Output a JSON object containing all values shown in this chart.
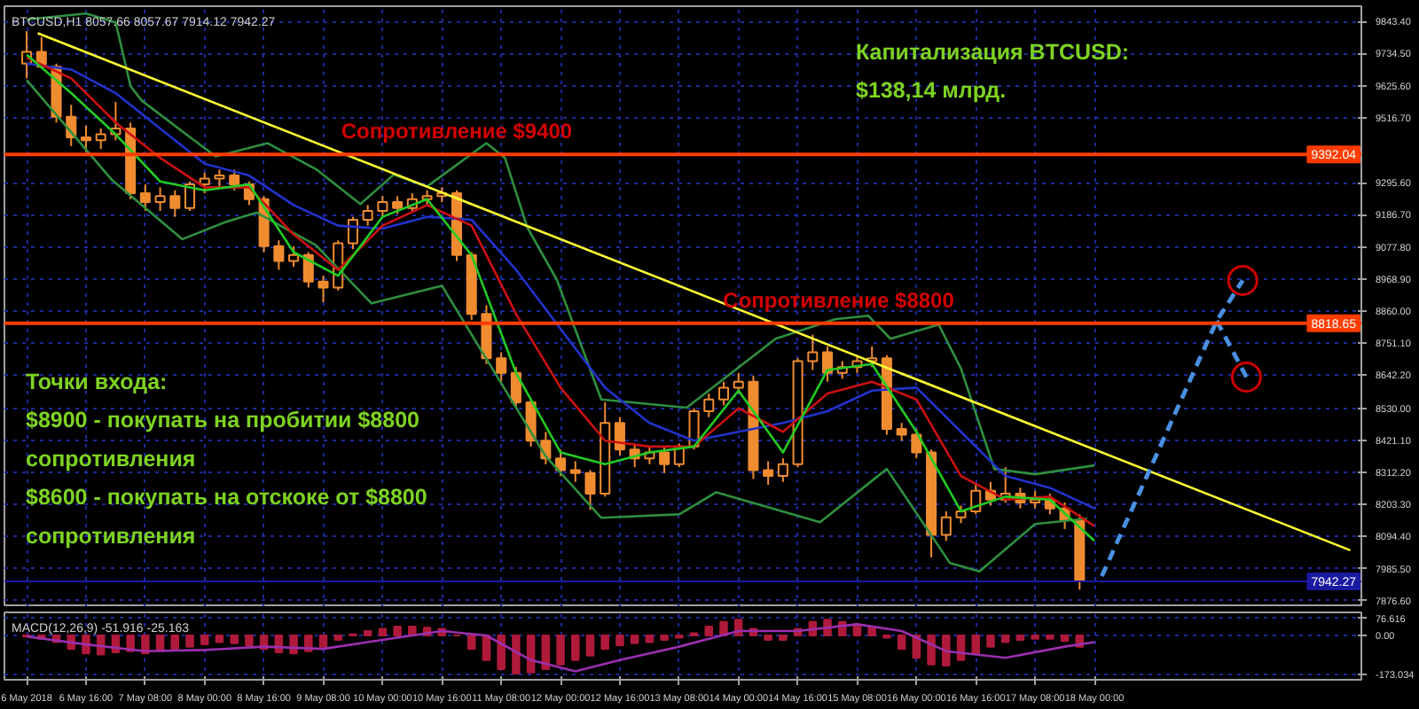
{
  "chart_data": [
    {
      "type": "candlestick",
      "title": "BTCUSD,H1  8057.66 8057.67 7914.12 7942.27",
      "xlim": [
        "2018-05-05T18:00",
        "2018-05-21T00:00"
      ],
      "xticks": [
        {
          "value": "2018-05-06T00:00",
          "label": null
        },
        {
          "value": "2018-05-06T16:00",
          "label": null
        },
        {
          "value": "2018-05-07T08:00",
          "label": null
        },
        {
          "value": "2018-05-08T00:00",
          "label": null
        },
        {
          "value": "2018-05-08T16:00",
          "label": null
        },
        {
          "value": "2018-05-09T08:00",
          "label": null
        },
        {
          "value": "2018-05-10T00:00",
          "label": null
        },
        {
          "value": "2018-05-10T16:00",
          "label": null
        },
        {
          "value": "2018-05-11T08:00",
          "label": null
        },
        {
          "value": "2018-05-12T00:00",
          "label": null
        },
        {
          "value": "2018-05-12T16:00",
          "label": null
        },
        {
          "value": "2018-05-13T08:00",
          "label": null
        },
        {
          "value": "2018-05-14T00:00",
          "label": null
        },
        {
          "value": "2018-05-14T16:00",
          "label": null
        },
        {
          "value": "2018-05-15T08:00",
          "label": null
        },
        {
          "value": "2018-05-16T00:00",
          "label": null
        },
        {
          "value": "2018-05-16T16:00",
          "label": null
        },
        {
          "value": "2018-05-17T08:00",
          "label": null
        },
        {
          "value": "2018-05-18T00:00",
          "label": null
        }
      ],
      "ylim": [
        7855,
        9895
      ],
      "yticks": [
        {
          "value": 9843.4,
          "label": "9843.40"
        },
        {
          "value": 9734.5,
          "label": "9734.50"
        },
        {
          "value": 9625.6,
          "label": "9625.60"
        },
        {
          "value": 9516.7,
          "label": "9516.70"
        },
        {
          "value": 9295.6,
          "label": "9295.60"
        },
        {
          "value": 9186.7,
          "label": "9186.70"
        },
        {
          "value": 9077.8,
          "label": "9077.80"
        },
        {
          "value": 8968.9,
          "label": "8968.90"
        },
        {
          "value": 8860.0,
          "label": "8860.00"
        },
        {
          "value": 8751.1,
          "label": "8751.10"
        },
        {
          "value": 8642.2,
          "label": "8642.20"
        },
        {
          "value": 8530.0,
          "label": "8530.00"
        },
        {
          "value": 8421.1,
          "label": "8421.10"
        },
        {
          "value": 8312.2,
          "label": "8312.20"
        },
        {
          "value": 8203.3,
          "label": "8203.30"
        },
        {
          "value": 8094.4,
          "label": "8094.40"
        },
        {
          "value": 7985.5,
          "label": "7985.50"
        },
        {
          "value": 7876.6,
          "label": "7876.60"
        }
      ],
      "tick_labels": "y",
      "grid": true,
      "color": "#f08c30",
      "x": [
        "2018-05-06T00:00",
        "2018-05-06T04:00",
        "2018-05-06T08:00",
        "2018-05-06T12:00",
        "2018-05-06T16:00",
        "2018-05-06T20:00",
        "2018-05-07T00:00",
        "2018-05-07T04:00",
        "2018-05-07T08:00",
        "2018-05-07T12:00",
        "2018-05-07T16:00",
        "2018-05-07T20:00",
        "2018-05-08T00:00",
        "2018-05-08T04:00",
        "2018-05-08T08:00",
        "2018-05-08T12:00",
        "2018-05-08T16:00",
        "2018-05-08T20:00",
        "2018-05-09T00:00",
        "2018-05-09T04:00",
        "2018-05-09T08:00",
        "2018-05-09T12:00",
        "2018-05-09T16:00",
        "2018-05-09T20:00",
        "2018-05-10T00:00",
        "2018-05-10T04:00",
        "2018-05-10T08:00",
        "2018-05-10T12:00",
        "2018-05-10T16:00",
        "2018-05-10T20:00",
        "2018-05-11T00:00",
        "2018-05-11T04:00",
        "2018-05-11T08:00",
        "2018-05-11T12:00",
        "2018-05-11T16:00",
        "2018-05-11T20:00",
        "2018-05-12T00:00",
        "2018-05-12T04:00",
        "2018-05-12T08:00",
        "2018-05-12T12:00",
        "2018-05-12T16:00",
        "2018-05-12T20:00",
        "2018-05-13T00:00",
        "2018-05-13T04:00",
        "2018-05-13T08:00",
        "2018-05-13T12:00",
        "2018-05-13T16:00",
        "2018-05-13T20:00",
        "2018-05-14T00:00",
        "2018-05-14T04:00",
        "2018-05-14T08:00",
        "2018-05-14T12:00",
        "2018-05-14T16:00",
        "2018-05-14T20:00",
        "2018-05-15T00:00",
        "2018-05-15T04:00",
        "2018-05-15T08:00",
        "2018-05-15T12:00",
        "2018-05-15T16:00",
        "2018-05-15T20:00",
        "2018-05-16T00:00",
        "2018-05-16T04:00",
        "2018-05-16T08:00",
        "2018-05-16T12:00",
        "2018-05-16T16:00",
        "2018-05-16T20:00",
        "2018-05-17T00:00",
        "2018-05-17T04:00",
        "2018-05-17T08:00",
        "2018-05-17T12:00",
        "2018-05-17T16:00",
        "2018-05-17T20:00"
      ],
      "ohlc": [
        [
          9700,
          9810,
          9650,
          9740
        ],
        [
          9740,
          9790,
          9690,
          9690
        ],
        [
          9690,
          9700,
          9500,
          9520
        ],
        [
          9520,
          9560,
          9420,
          9450
        ],
        [
          9450,
          9490,
          9400,
          9440
        ],
        [
          9440,
          9480,
          9410,
          9460
        ],
        [
          9460,
          9570,
          9440,
          9480
        ],
        [
          9480,
          9500,
          9240,
          9260
        ],
        [
          9260,
          9290,
          9200,
          9230
        ],
        [
          9230,
          9280,
          9200,
          9250
        ],
        [
          9250,
          9270,
          9180,
          9210
        ],
        [
          9210,
          9300,
          9200,
          9290
        ],
        [
          9290,
          9330,
          9260,
          9310
        ],
        [
          9310,
          9340,
          9280,
          9320
        ],
        [
          9320,
          9340,
          9270,
          9290
        ],
        [
          9290,
          9300,
          9220,
          9240
        ],
        [
          9240,
          9250,
          9060,
          9080
        ],
        [
          9080,
          9100,
          9000,
          9030
        ],
        [
          9030,
          9080,
          9010,
          9050
        ],
        [
          9050,
          9060,
          8940,
          8960
        ],
        [
          8960,
          8980,
          8890,
          8940
        ],
        [
          8940,
          9100,
          8930,
          9090
        ],
        [
          9090,
          9180,
          9070,
          9170
        ],
        [
          9170,
          9220,
          9150,
          9200
        ],
        [
          9200,
          9250,
          9180,
          9230
        ],
        [
          9230,
          9250,
          9190,
          9210
        ],
        [
          9210,
          9260,
          9200,
          9240
        ],
        [
          9240,
          9270,
          9220,
          9250
        ],
        [
          9250,
          9280,
          9230,
          9260
        ],
        [
          9260,
          9270,
          9030,
          9050
        ],
        [
          9050,
          9060,
          8830,
          8850
        ],
        [
          8850,
          8880,
          8680,
          8700
        ],
        [
          8700,
          8720,
          8620,
          8650
        ],
        [
          8650,
          8670,
          8530,
          8550
        ],
        [
          8550,
          8560,
          8400,
          8420
        ],
        [
          8420,
          8450,
          8340,
          8360
        ],
        [
          8360,
          8390,
          8300,
          8320
        ],
        [
          8320,
          8350,
          8280,
          8310
        ],
        [
          8310,
          8320,
          8185,
          8240
        ],
        [
          8240,
          8550,
          8230,
          8480
        ],
        [
          8480,
          8500,
          8370,
          8390
        ],
        [
          8390,
          8410,
          8330,
          8360
        ],
        [
          8360,
          8400,
          8340,
          8380
        ],
        [
          8380,
          8400,
          8310,
          8340
        ],
        [
          8340,
          8410,
          8330,
          8400
        ],
        [
          8400,
          8530,
          8390,
          8520
        ],
        [
          8520,
          8580,
          8500,
          8560
        ],
        [
          8560,
          8620,
          8540,
          8600
        ],
        [
          8600,
          8650,
          8580,
          8620
        ],
        [
          8620,
          8640,
          8290,
          8320
        ],
        [
          8320,
          8350,
          8270,
          8300
        ],
        [
          8300,
          8360,
          8280,
          8340
        ],
        [
          8340,
          8700,
          8330,
          8690
        ],
        [
          8690,
          8780,
          8660,
          8720
        ],
        [
          8720,
          8740,
          8620,
          8650
        ],
        [
          8650,
          8690,
          8630,
          8670
        ],
        [
          8670,
          8710,
          8650,
          8690
        ],
        [
          8690,
          8740,
          8670,
          8700
        ],
        [
          8700,
          8710,
          8440,
          8460
        ],
        [
          8460,
          8480,
          8420,
          8440
        ],
        [
          8440,
          8460,
          8360,
          8380
        ],
        [
          8380,
          8390,
          8024,
          8100
        ],
        [
          8100,
          8180,
          8080,
          8160
        ],
        [
          8160,
          8200,
          8140,
          8180
        ],
        [
          8180,
          8270,
          8170,
          8250
        ],
        [
          8250,
          8280,
          8200,
          8220
        ],
        [
          8220,
          8330,
          8210,
          8240
        ],
        [
          8240,
          8260,
          8190,
          8210
        ],
        [
          8210,
          8250,
          8190,
          8220
        ],
        [
          8220,
          8240,
          8170,
          8190
        ],
        [
          8190,
          8210,
          8120,
          8150
        ],
        [
          8150,
          8170,
          7914.12,
          7942.27
        ]
      ],
      "series": [
        {
          "type": "line",
          "color": "#2f8f3f",
          "x": [
            "2018-05-06T00:00",
            "2018-05-06T16:00",
            "2018-05-07T00:00",
            "2018-05-07T04:00",
            "2018-05-07T07:00",
            "2018-05-07T19:00",
            "2018-05-08T03:00",
            "2018-05-08T17:00",
            "2018-05-09T06:00",
            "2018-05-09T18:00",
            "2018-05-10T03:00",
            "2018-05-10T12:00",
            "2018-05-11T04:00",
            "2018-05-11T09:00",
            "2018-05-11T15:00",
            "2018-05-11T23:00",
            "2018-05-12T11:00",
            "2018-05-13T10:00",
            "2018-05-14T10:00",
            "2018-05-15T02:00",
            "2018-05-15T11:00",
            "2018-05-15T17:00",
            "2018-05-16T06:00",
            "2018-05-16T12:00",
            "2018-05-16T21:00",
            "2018-05-17T08:00",
            "2018-05-18T00:00"
          ],
          "values": [
            9850,
            9870,
            9840,
            9624,
            9575,
            9460,
            9385,
            9430,
            9342,
            9223,
            9323,
            9283,
            9430,
            9380,
            9145,
            8966,
            8560,
            8532,
            8766,
            8832,
            8844,
            8766,
            8814,
            8665,
            8324,
            8306,
            8336
          ]
        },
        {
          "type": "line",
          "color": "#2f8f3f",
          "x": [
            "2018-05-06T00:00",
            "2018-05-06T23:00",
            "2018-05-07T18:00",
            "2018-05-08T06:00",
            "2018-05-08T14:00",
            "2018-05-09T06:00",
            "2018-05-09T21:00",
            "2018-05-10T16:00",
            "2018-05-11T20:00",
            "2018-05-12T11:00",
            "2018-05-13T08:00",
            "2018-05-13T18:00",
            "2018-05-14T22:00",
            "2018-05-15T16:00",
            "2018-05-16T09:00",
            "2018-05-16T17:00",
            "2018-05-17T08:00",
            "2018-05-17T22:00"
          ],
          "values": [
            9644,
            9305,
            9104,
            9164,
            9194,
            9084,
            8886,
            8946,
            8367,
            8158,
            8170,
            8245,
            8143,
            8324,
            8005,
            7976,
            8137,
            8155
          ]
        },
        {
          "type": "line",
          "color": "#2233cc",
          "x": [
            "2018-05-06T00:00",
            "2018-05-06T12:00",
            "2018-05-07T00:00",
            "2018-05-07T12:00",
            "2018-05-08T00:00",
            "2018-05-08T12:00",
            "2018-05-09T00:00",
            "2018-05-09T12:00",
            "2018-05-10T00:00",
            "2018-05-10T12:00",
            "2018-05-11T00:00",
            "2018-05-11T12:00",
            "2018-05-12T00:00",
            "2018-05-12T12:00",
            "2018-05-13T00:00",
            "2018-05-13T12:00",
            "2018-05-14T00:00",
            "2018-05-14T12:00",
            "2018-05-15T00:00",
            "2018-05-15T12:00",
            "2018-05-16T00:00",
            "2018-05-16T12:00",
            "2018-05-17T00:00",
            "2018-05-17T12:00",
            "2018-05-18T00:00"
          ],
          "values": [
            9700,
            9680,
            9600,
            9480,
            9360,
            9320,
            9220,
            9150,
            9140,
            9180,
            9170,
            9000,
            8800,
            8600,
            8480,
            8420,
            8450,
            8480,
            8520,
            8590,
            8600,
            8450,
            8300,
            8260,
            8190
          ]
        },
        {
          "type": "line",
          "color": "#cc1111",
          "x": [
            "2018-05-06T00:00",
            "2018-05-06T12:00",
            "2018-05-07T00:00",
            "2018-05-07T12:00",
            "2018-05-08T00:00",
            "2018-05-08T12:00",
            "2018-05-09T00:00",
            "2018-05-09T12:00",
            "2018-05-10T00:00",
            "2018-05-10T12:00",
            "2018-05-11T00:00",
            "2018-05-11T12:00",
            "2018-05-12T00:00",
            "2018-05-12T12:00",
            "2018-05-13T00:00",
            "2018-05-13T12:00",
            "2018-05-14T00:00",
            "2018-05-14T12:00",
            "2018-05-15T00:00",
            "2018-05-15T12:00",
            "2018-05-16T00:00",
            "2018-05-16T12:00",
            "2018-05-17T00:00",
            "2018-05-17T12:00",
            "2018-05-18T00:00"
          ],
          "values": [
            9720,
            9650,
            9500,
            9380,
            9280,
            9280,
            9120,
            9000,
            9150,
            9220,
            9150,
            8850,
            8600,
            8420,
            8400,
            8400,
            8530,
            8450,
            8580,
            8620,
            8560,
            8300,
            8220,
            8230,
            8130
          ]
        },
        {
          "type": "line",
          "color": "#22cc22",
          "x": [
            "2018-05-06T00:00",
            "2018-05-06T12:00",
            "2018-05-07T00:00",
            "2018-05-07T12:00",
            "2018-05-08T00:00",
            "2018-05-08T12:00",
            "2018-05-09T00:00",
            "2018-05-09T12:00",
            "2018-05-10T00:00",
            "2018-05-10T12:00",
            "2018-05-11T00:00",
            "2018-05-11T12:00",
            "2018-05-12T00:00",
            "2018-05-12T12:00",
            "2018-05-13T00:00",
            "2018-05-13T12:00",
            "2018-05-14T00:00",
            "2018-05-14T12:00",
            "2018-05-15T00:00",
            "2018-05-15T12:00",
            "2018-05-16T00:00",
            "2018-05-16T12:00",
            "2018-05-17T00:00",
            "2018-05-17T12:00",
            "2018-05-18T00:00"
          ],
          "values": [
            9730,
            9600,
            9460,
            9300,
            9270,
            9290,
            9060,
            8980,
            9180,
            9240,
            9050,
            8650,
            8380,
            8340,
            8380,
            8400,
            8590,
            8380,
            8660,
            8680,
            8450,
            8180,
            8230,
            8220,
            8080
          ]
        },
        {
          "type": "line",
          "color": "#ffff33",
          "x": [
            "2018-05-06T03:00",
            "2018-05-20T21:00"
          ],
          "values": [
            9803,
            8048
          ]
        },
        {
          "type": "line",
          "color": "#4a90e2",
          "line_style": "dashed",
          "x": [
            "2018-05-18T02:00",
            "2018-05-19T09:00",
            "2018-05-19T16:00"
          ],
          "values": [
            7960,
            8827,
            8964
          ]
        },
        {
          "type": "line",
          "color": "#4a90e2",
          "line_style": "dashed",
          "x": [
            "2018-05-19T09:00",
            "2018-05-19T17:00"
          ],
          "values": [
            8827,
            8636
          ]
        },
        {
          "type": "scatter",
          "marker": "circle",
          "color": "#cc0000",
          "x": [
            "2018-05-19T16:00",
            "2018-05-19T17:00"
          ],
          "values": [
            8964,
            8636
          ]
        }
      ],
      "ref_lines": [
        {
          "axis": "y",
          "value": 9392.04,
          "label": "9392.04",
          "color": "#ff3c00"
        },
        {
          "axis": "y",
          "value": 8818.65,
          "label": "8818.65",
          "color": "#ff3c00"
        },
        {
          "axis": "y",
          "value": 7942.27,
          "label": "7942.27",
          "color": "#1a1aa0"
        }
      ],
      "annotations": [
        {
          "text": "Сопротивление $9400",
          "x": "2018-05-10T20:00",
          "y": 9392.04
        },
        {
          "text": "Сопротивление $8800",
          "x": "2018-05-15T03:00",
          "y": 8818.65
        },
        "Капитализация BTCUSD:\n$138,14 млрд.",
        "Точки входа:\n$8900 - покупать на пробитии $8800\nсопротивления\n$8600 - покупать на отскоке от $8800\nсопротивления"
      ]
    },
    {
      "type": "bar",
      "title": "MACD(12,26,9) -51.916 -25.163",
      "xlim": [
        "2018-05-05T18:00",
        "2018-05-21T00:00"
      ],
      "xticks": [
        {
          "value": "2018-05-06T00:00",
          "label": "6 May 2018"
        },
        {
          "value": "2018-05-06T16:00",
          "label": "6 May 16:00"
        },
        {
          "value": "2018-05-07T08:00",
          "label": "7 May 08:00"
        },
        {
          "value": "2018-05-08T00:00",
          "label": "8 May 00:00"
        },
        {
          "value": "2018-05-08T16:00",
          "label": "8 May 16:00"
        },
        {
          "value": "2018-05-09T08:00",
          "label": "9 May 08:00"
        },
        {
          "value": "2018-05-10T00:00",
          "label": "10 May 00:00"
        },
        {
          "value": "2018-05-10T16:00",
          "label": "10 May 16:00"
        },
        {
          "value": "2018-05-11T08:00",
          "label": "11 May 08:00"
        },
        {
          "value": "2018-05-12T00:00",
          "label": "12 May 00:00"
        },
        {
          "value": "2018-05-12T16:00",
          "label": "12 May 16:00"
        },
        {
          "value": "2018-05-13T08:00",
          "label": "13 May 08:00"
        },
        {
          "value": "2018-05-14T00:00",
          "label": "14 May 00:00"
        },
        {
          "value": "2018-05-14T16:00",
          "label": "14 May 16:00"
        },
        {
          "value": "2018-05-15T08:00",
          "label": "15 May 08:00"
        },
        {
          "value": "2018-05-16T00:00",
          "label": "16 May 00:00"
        },
        {
          "value": "2018-05-16T16:00",
          "label": "16 May 16:00"
        },
        {
          "value": "2018-05-17T08:00",
          "label": "17 May 08:00"
        },
        {
          "value": "2018-05-18T00:00",
          "label": "18 May 00:00"
        }
      ],
      "ylim": [
        -198,
        103
      ],
      "yticks": [
        {
          "value": 76.616,
          "label": "76.616"
        },
        {
          "value": 0,
          "label": "0.00"
        },
        {
          "value": -173.034,
          "label": "-173.034"
        }
      ],
      "grid": true,
      "x": [
        "2018-05-06T00:00",
        "2018-05-06T04:00",
        "2018-05-06T08:00",
        "2018-05-06T12:00",
        "2018-05-06T16:00",
        "2018-05-06T20:00",
        "2018-05-07T00:00",
        "2018-05-07T04:00",
        "2018-05-07T08:00",
        "2018-05-07T12:00",
        "2018-05-07T16:00",
        "2018-05-07T20:00",
        "2018-05-08T00:00",
        "2018-05-08T04:00",
        "2018-05-08T08:00",
        "2018-05-08T12:00",
        "2018-05-08T16:00",
        "2018-05-08T20:00",
        "2018-05-09T00:00",
        "2018-05-09T04:00",
        "2018-05-09T08:00",
        "2018-05-09T12:00",
        "2018-05-09T16:00",
        "2018-05-09T20:00",
        "2018-05-10T00:00",
        "2018-05-10T04:00",
        "2018-05-10T08:00",
        "2018-05-10T12:00",
        "2018-05-10T16:00",
        "2018-05-10T20:00",
        "2018-05-11T00:00",
        "2018-05-11T04:00",
        "2018-05-11T08:00",
        "2018-05-11T12:00",
        "2018-05-11T16:00",
        "2018-05-11T20:00",
        "2018-05-12T00:00",
        "2018-05-12T04:00",
        "2018-05-12T08:00",
        "2018-05-12T12:00",
        "2018-05-12T16:00",
        "2018-05-12T20:00",
        "2018-05-13T00:00",
        "2018-05-13T04:00",
        "2018-05-13T08:00",
        "2018-05-13T12:00",
        "2018-05-13T16:00",
        "2018-05-13T20:00",
        "2018-05-14T00:00",
        "2018-05-14T04:00",
        "2018-05-14T08:00",
        "2018-05-14T12:00",
        "2018-05-14T16:00",
        "2018-05-14T20:00",
        "2018-05-15T00:00",
        "2018-05-15T04:00",
        "2018-05-15T08:00",
        "2018-05-15T12:00",
        "2018-05-15T16:00",
        "2018-05-15T20:00",
        "2018-05-16T00:00",
        "2018-05-16T04:00",
        "2018-05-16T08:00",
        "2018-05-16T12:00",
        "2018-05-16T16:00",
        "2018-05-16T20:00",
        "2018-05-17T00:00",
        "2018-05-17T04:00",
        "2018-05-17T08:00",
        "2018-05-17T12:00",
        "2018-05-17T16:00",
        "2018-05-17T20:00"
      ],
      "series": [
        {
          "type": "bar",
          "color": "#b01a3a",
          "values": [
            -5,
            -15,
            -30,
            -60,
            -80,
            -85,
            -75,
            -70,
            -80,
            -70,
            -60,
            -50,
            -40,
            -30,
            -35,
            -45,
            -60,
            -75,
            -80,
            -70,
            -50,
            -20,
            5,
            20,
            30,
            40,
            40,
            35,
            30,
            0,
            -60,
            -110,
            -150,
            -170,
            -165,
            -150,
            -130,
            -110,
            -90,
            -60,
            -45,
            -35,
            -30,
            -20,
            -10,
            10,
            40,
            60,
            70,
            30,
            -20,
            -20,
            30,
            60,
            70,
            60,
            50,
            40,
            -10,
            -60,
            -100,
            -130,
            -135,
            -110,
            -80,
            -50,
            -30,
            -20,
            -15,
            -15,
            -25,
            -50
          ]
        },
        {
          "type": "line",
          "color": "#9b2fae",
          "x": [
            "2018-05-06T00:00",
            "2018-05-06T16:00",
            "2018-05-07T08:00",
            "2018-05-08T00:00",
            "2018-05-08T16:00",
            "2018-05-09T08:00",
            "2018-05-10T00:00",
            "2018-05-10T16:00",
            "2018-05-11T04:00",
            "2018-05-11T16:00",
            "2018-05-12T04:00",
            "2018-05-12T16:00",
            "2018-05-13T08:00",
            "2018-05-14T00:00",
            "2018-05-14T16:00",
            "2018-05-15T08:00",
            "2018-05-15T20:00",
            "2018-05-16T08:00",
            "2018-05-17T00:00",
            "2018-05-17T16:00",
            "2018-05-18T00:00"
          ],
          "values": [
            -5,
            -40,
            -70,
            -65,
            -50,
            -60,
            -20,
            20,
            0,
            -110,
            -160,
            -110,
            -50,
            20,
            20,
            50,
            20,
            -70,
            -100,
            -50,
            -30
          ]
        }
      ]
    }
  ]
}
